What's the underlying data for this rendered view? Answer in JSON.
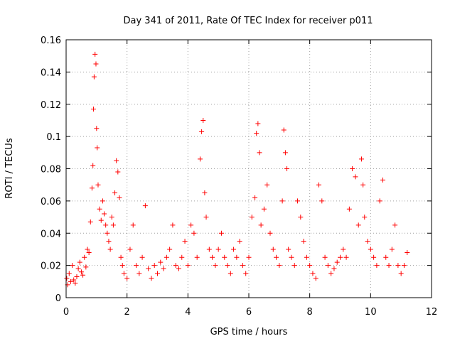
{
  "chart_data": {
    "type": "scatter",
    "title": "Day 341 of 2011, Rate Of TEC Index for receiver p011",
    "xlabel": "GPS time / hours",
    "ylabel": "ROTI / TECUs",
    "xlim": [
      0,
      12
    ],
    "ylim": [
      0,
      0.16
    ],
    "xticks": [
      "0",
      "2",
      "4",
      "6",
      "8",
      "10",
      "12"
    ],
    "yticks": [
      "0",
      "0.02",
      "0.04",
      "0.06",
      "0.08",
      "0.1",
      "0.12",
      "0.14",
      "0.16"
    ],
    "grid": true,
    "marker": "+",
    "color": "#ff0000",
    "series": [
      {
        "x": [
          0.02,
          0.05,
          0.1,
          0.15,
          0.2,
          0.25,
          0.3,
          0.35,
          0.4,
          0.45,
          0.5,
          0.55,
          0.6,
          0.65,
          0.7,
          0.75,
          0.8,
          0.85,
          0.88,
          0.9,
          0.92,
          0.95,
          0.98,
          1.0,
          1.02,
          1.05,
          1.1,
          1.15,
          1.2,
          1.25,
          1.3,
          1.35,
          1.4,
          1.45,
          1.5,
          1.55,
          1.6,
          1.65,
          1.7,
          1.75,
          1.8,
          1.85,
          1.9,
          2.0,
          2.1,
          2.2,
          2.3,
          2.4,
          2.5,
          2.6,
          2.7,
          2.8,
          2.9,
          3.0,
          3.1,
          3.2,
          3.3,
          3.4,
          3.5,
          3.6,
          3.7,
          3.8,
          3.9,
          4.0,
          4.1,
          4.2,
          4.3,
          4.4,
          4.45,
          4.5,
          4.55,
          4.6,
          4.7,
          4.8,
          4.9,
          5.0,
          5.1,
          5.2,
          5.3,
          5.4,
          5.5,
          5.6,
          5.7,
          5.8,
          5.9,
          6.0,
          6.1,
          6.2,
          6.25,
          6.3,
          6.35,
          6.4,
          6.5,
          6.6,
          6.7,
          6.8,
          6.9,
          7.0,
          7.1,
          7.15,
          7.2,
          7.25,
          7.3,
          7.4,
          7.5,
          7.6,
          7.7,
          7.8,
          7.9,
          8.0,
          8.1,
          8.2,
          8.3,
          8.4,
          8.5,
          8.6,
          8.7,
          8.8,
          8.9,
          9.0,
          9.1,
          9.2,
          9.3,
          9.4,
          9.5,
          9.6,
          9.7,
          9.75,
          9.8,
          9.9,
          10.0,
          10.1,
          10.2,
          10.3,
          10.4,
          10.5,
          10.6,
          10.7,
          10.8,
          10.9,
          11.0,
          11.1,
          11.2
        ],
        "y": [
          0.012,
          0.008,
          0.015,
          0.01,
          0.02,
          0.011,
          0.009,
          0.013,
          0.018,
          0.022,
          0.016,
          0.014,
          0.025,
          0.019,
          0.03,
          0.028,
          0.047,
          0.068,
          0.082,
          0.117,
          0.137,
          0.151,
          0.145,
          0.105,
          0.093,
          0.07,
          0.055,
          0.048,
          0.06,
          0.052,
          0.045,
          0.04,
          0.035,
          0.03,
          0.05,
          0.045,
          0.065,
          0.085,
          0.078,
          0.062,
          0.025,
          0.02,
          0.015,
          0.012,
          0.03,
          0.045,
          0.02,
          0.015,
          0.025,
          0.057,
          0.018,
          0.012,
          0.02,
          0.015,
          0.022,
          0.018,
          0.025,
          0.03,
          0.045,
          0.02,
          0.018,
          0.025,
          0.035,
          0.02,
          0.045,
          0.04,
          0.025,
          0.086,
          0.103,
          0.11,
          0.065,
          0.05,
          0.03,
          0.025,
          0.02,
          0.03,
          0.04,
          0.025,
          0.02,
          0.015,
          0.03,
          0.025,
          0.035,
          0.02,
          0.015,
          0.025,
          0.05,
          0.062,
          0.102,
          0.108,
          0.09,
          0.045,
          0.055,
          0.07,
          0.04,
          0.03,
          0.025,
          0.02,
          0.06,
          0.104,
          0.09,
          0.08,
          0.03,
          0.025,
          0.02,
          0.06,
          0.05,
          0.035,
          0.025,
          0.02,
          0.015,
          0.012,
          0.07,
          0.06,
          0.025,
          0.02,
          0.015,
          0.018,
          0.022,
          0.025,
          0.03,
          0.025,
          0.055,
          0.08,
          0.075,
          0.045,
          0.086,
          0.07,
          0.05,
          0.035,
          0.03,
          0.025,
          0.02,
          0.06,
          0.073,
          0.025,
          0.02,
          0.03,
          0.045,
          0.02,
          0.015,
          0.02,
          0.028
        ]
      }
    ]
  }
}
